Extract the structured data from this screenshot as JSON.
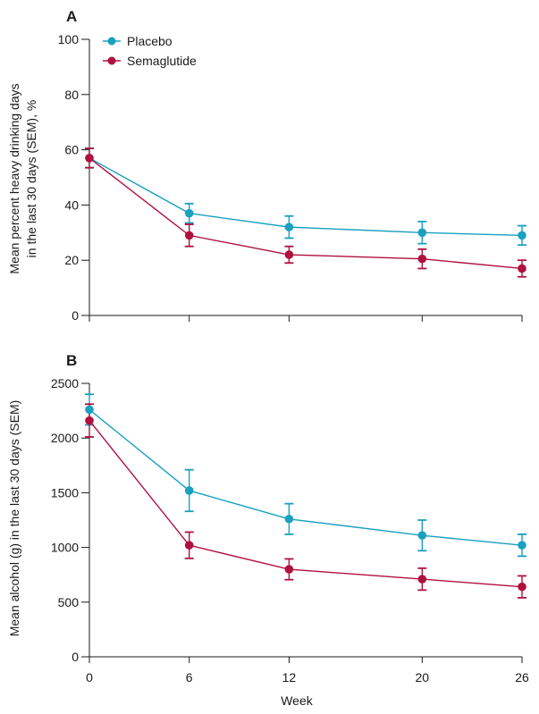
{
  "figure": {
    "xlabel": "Week",
    "colors": {
      "placebo": "#1aa0c0",
      "semaglutide": "#b0103e"
    }
  },
  "legend": {
    "placebo": "Placebo",
    "semaglutide": "Semaglutide"
  },
  "chart_data": [
    {
      "type": "line",
      "panel": "A",
      "ylabel_line1": "Mean percent heavy drinking days",
      "ylabel_line2": "in the last 30 days (SEM), %",
      "xlabel": "",
      "x": [
        0,
        6,
        12,
        20,
        26
      ],
      "x_ticks": [
        "0",
        "6",
        "12",
        "20",
        "26"
      ],
      "xlim": [
        0,
        26
      ],
      "ylim": [
        0,
        100
      ],
      "y_ticks": [
        0,
        20,
        40,
        60,
        80,
        100
      ],
      "legend_position": "top-left",
      "error_bars": true,
      "series": [
        {
          "name": "Placebo",
          "values": [
            57,
            37,
            32,
            30,
            29
          ],
          "sem": [
            3.5,
            3.5,
            4,
            4,
            3.5
          ]
        },
        {
          "name": "Semaglutide",
          "values": [
            57,
            29,
            22,
            20.5,
            17
          ],
          "sem": [
            3.5,
            4,
            3,
            3.5,
            3
          ]
        }
      ]
    },
    {
      "type": "line",
      "panel": "B",
      "ylabel_line1": "Mean alcohol (g) in the last 30 days (SEM)",
      "xlabel": "Week",
      "x": [
        0,
        6,
        12,
        20,
        26
      ],
      "x_ticks": [
        "0",
        "6",
        "12",
        "20",
        "26"
      ],
      "xlim": [
        0,
        26
      ],
      "ylim": [
        0,
        2500
      ],
      "y_ticks": [
        0,
        500,
        1000,
        1500,
        2000,
        2500
      ],
      "error_bars": true,
      "series": [
        {
          "name": "Placebo",
          "values": [
            2260,
            1520,
            1260,
            1110,
            1020
          ],
          "sem": [
            140,
            190,
            140,
            140,
            100
          ]
        },
        {
          "name": "Semaglutide",
          "values": [
            2160,
            1020,
            800,
            710,
            640
          ],
          "sem": [
            150,
            120,
            95,
            100,
            100
          ]
        }
      ]
    }
  ]
}
